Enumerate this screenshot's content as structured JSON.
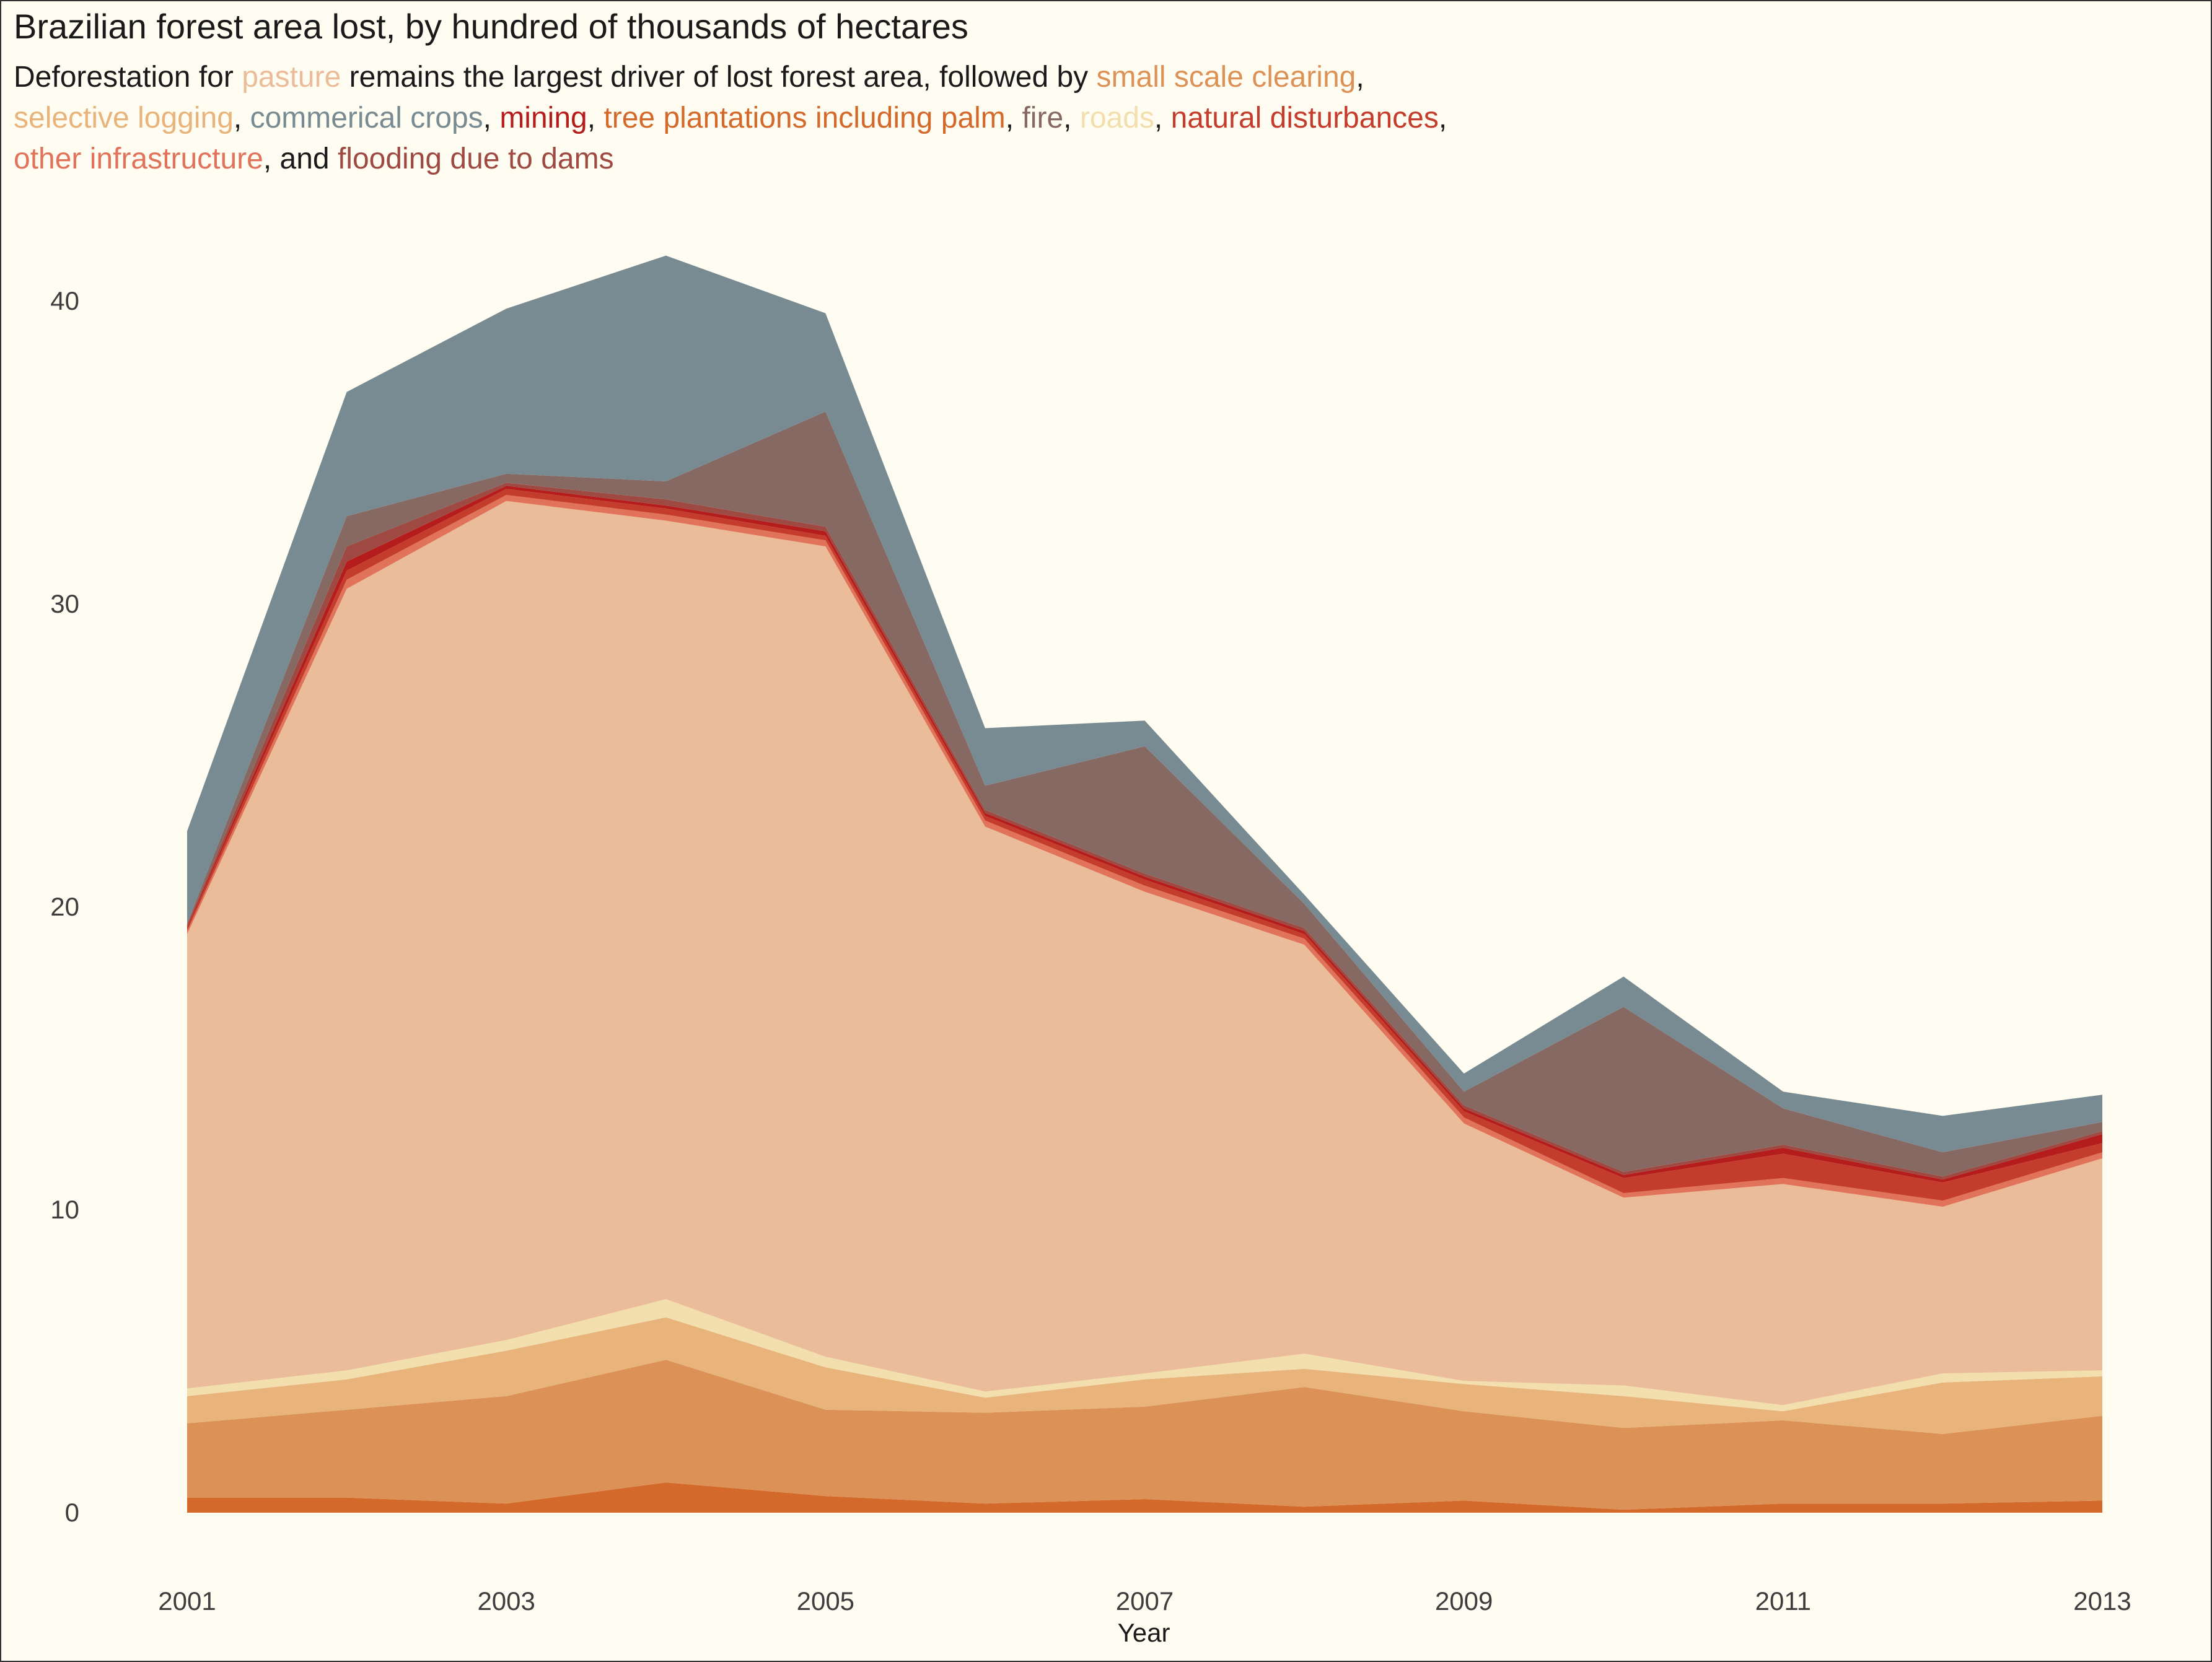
{
  "title": "Brazilian forest area lost, by hundred of thousands of hectares",
  "subtitle": {
    "line1": [
      {
        "t": "Deforestation for ",
        "c": "#1a1a1a"
      },
      {
        "t": "pasture",
        "c": "#ebbc9a"
      },
      {
        "t": " remains the largest driver of lost forest area, followed by ",
        "c": "#1a1a1a"
      },
      {
        "t": "small scale clearing",
        "c": "#dc9256"
      },
      {
        "t": ",",
        "c": "#1a1a1a"
      }
    ],
    "line2": [
      {
        "t": "selective logging",
        "c": "#e8b47c"
      },
      {
        "t": ", ",
        "c": "#1a1a1a"
      },
      {
        "t": "commerical crops",
        "c": "#788b92"
      },
      {
        "t": ", ",
        "c": "#1a1a1a"
      },
      {
        "t": "mining",
        "c": "#b51c1c"
      },
      {
        "t": ", ",
        "c": "#1a1a1a"
      },
      {
        "t": "tree plantations including palm",
        "c": "#d3692b"
      },
      {
        "t": ", ",
        "c": "#1a1a1a"
      },
      {
        "t": "fire",
        "c": "#876964"
      },
      {
        "t": ", ",
        "c": "#1a1a1a"
      },
      {
        "t": "roads",
        "c": "#f3dfae"
      },
      {
        "t": ", ",
        "c": "#1a1a1a"
      },
      {
        "t": "natural disturbances",
        "c": "#c43c2b"
      },
      {
        "t": ",",
        "c": "#1a1a1a"
      }
    ],
    "line3": [
      {
        "t": "other infrastructure",
        "c": "#e0735a"
      },
      {
        "t": ", and ",
        "c": "#1a1a1a"
      },
      {
        "t": "flooding due to dams",
        "c": "#9e4a42"
      }
    ]
  },
  "chart_data": {
    "type": "area",
    "stacked": true,
    "title": "Brazilian forest area lost, by hundred of thousands of hectares",
    "xlabel": "Year",
    "ylabel": "",
    "xlim": [
      2001,
      2013
    ],
    "ylim": [
      0,
      42
    ],
    "x_ticks": [
      "2001",
      "2003",
      "2005",
      "2007",
      "2009",
      "2011",
      "2013"
    ],
    "y_ticks": [
      "0",
      "10",
      "20",
      "30",
      "40"
    ],
    "x": [
      2001,
      2002,
      2003,
      2004,
      2005,
      2006,
      2007,
      2008,
      2009,
      2010,
      2011,
      2012,
      2013
    ],
    "series": [
      {
        "name": "tree plantations including palm",
        "color": "#d3692b",
        "values": [
          0.5,
          0.5,
          0.3,
          1.0,
          0.55,
          0.3,
          0.45,
          0.2,
          0.4,
          0.1,
          0.3,
          0.3,
          0.4
        ]
      },
      {
        "name": "small scale clearing",
        "color": "#dc9256",
        "values": [
          2.45,
          2.9,
          3.55,
          4.05,
          2.85,
          3.0,
          3.05,
          3.95,
          2.95,
          2.7,
          2.75,
          2.3,
          2.8
        ]
      },
      {
        "name": "selective logging",
        "color": "#e8b47c",
        "values": [
          0.9,
          1.0,
          1.5,
          1.4,
          1.4,
          0.5,
          0.9,
          0.6,
          0.9,
          1.05,
          0.3,
          1.7,
          1.3
        ]
      },
      {
        "name": "roads",
        "color": "#f3dfae",
        "values": [
          0.25,
          0.3,
          0.35,
          0.6,
          0.35,
          0.2,
          0.2,
          0.5,
          0.1,
          0.35,
          0.2,
          0.3,
          0.2
        ]
      },
      {
        "name": "pasture",
        "color": "#ebbc9a",
        "values": [
          15.0,
          25.8,
          27.7,
          25.7,
          26.75,
          18.65,
          15.9,
          13.5,
          8.5,
          6.2,
          7.3,
          5.5,
          7.0
        ]
      },
      {
        "name": "other infrastructure",
        "color": "#e0735a",
        "values": [
          0.1,
          0.3,
          0.2,
          0.2,
          0.2,
          0.2,
          0.2,
          0.2,
          0.2,
          0.15,
          0.2,
          0.2,
          0.2
        ]
      },
      {
        "name": "natural disturbances",
        "color": "#c43c2b",
        "values": [
          0.1,
          0.3,
          0.2,
          0.2,
          0.15,
          0.15,
          0.2,
          0.15,
          0.2,
          0.5,
          0.8,
          0.6,
          0.3
        ]
      },
      {
        "name": "mining",
        "color": "#b51c1c",
        "values": [
          0.05,
          0.3,
          0.1,
          0.1,
          0.15,
          0.1,
          0.1,
          0.1,
          0.1,
          0.1,
          0.2,
          0.1,
          0.3
        ]
      },
      {
        "name": "flooding due to dams",
        "color": "#9e4a42",
        "values": [
          0.05,
          0.5,
          0.1,
          0.2,
          0.15,
          0.1,
          0.1,
          0.1,
          0.1,
          0.1,
          0.1,
          0.1,
          0.1
        ]
      },
      {
        "name": "fire",
        "color": "#876964",
        "values": [
          0.05,
          1.0,
          0.3,
          0.6,
          3.8,
          0.8,
          4.2,
          0.8,
          0.45,
          5.45,
          1.2,
          0.8,
          0.3
        ]
      },
      {
        "name": "commerical crops",
        "color": "#788b92",
        "values": [
          3.05,
          4.1,
          5.45,
          7.45,
          3.25,
          1.9,
          0.85,
          0.3,
          0.6,
          1.0,
          0.55,
          1.2,
          0.9
        ]
      }
    ]
  }
}
